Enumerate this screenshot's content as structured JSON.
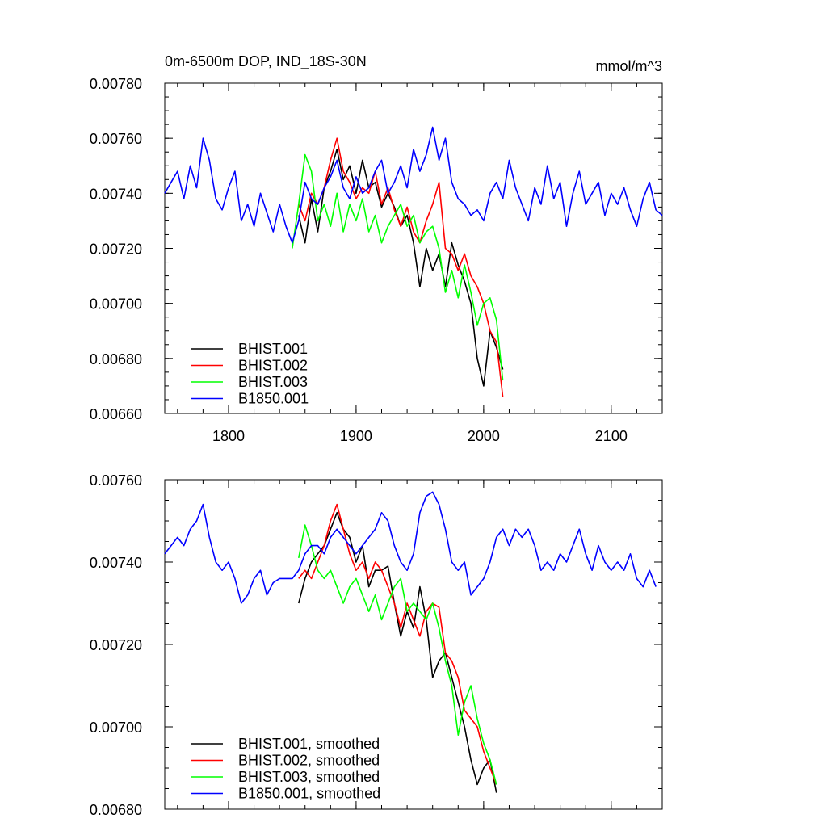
{
  "chart_data": [
    {
      "type": "line",
      "title": "0m-6500m DOP, IND_18S-30N",
      "units": "mmol/m^3",
      "xlim": [
        1750,
        2140
      ],
      "ylim": [
        0.0066,
        0.0078
      ],
      "xticks": [
        "1800",
        "1900",
        "2000",
        "2100"
      ],
      "xtick_values": [
        1800,
        1900,
        2000,
        2100
      ],
      "yticks": [
        "0.00780",
        "0.00760",
        "0.00740",
        "0.00720",
        "0.00700",
        "0.00680",
        "0.00660"
      ],
      "ytick_values": [
        0.0078,
        0.0076,
        0.0074,
        0.0072,
        0.007,
        0.0068,
        0.0066
      ],
      "legend_position": "bottom-left",
      "series": [
        {
          "name": "BHIST.001",
          "color": "#000000",
          "x": [
            1855,
            1860,
            1865,
            1870,
            1875,
            1880,
            1885,
            1890,
            1895,
            1900,
            1905,
            1910,
            1915,
            1920,
            1925,
            1930,
            1935,
            1940,
            1945,
            1950,
            1955,
            1960,
            1965,
            1970,
            1975,
            1980,
            1985,
            1990,
            1995,
            2000,
            2005,
            2010,
            2015
          ],
          "values": [
            0.00732,
            0.00722,
            0.00738,
            0.00726,
            0.00742,
            0.00748,
            0.00756,
            0.00745,
            0.0075,
            0.0074,
            0.00752,
            0.00742,
            0.00744,
            0.00735,
            0.0074,
            0.00735,
            0.00728,
            0.00732,
            0.00722,
            0.00706,
            0.0072,
            0.00712,
            0.00718,
            0.00706,
            0.00722,
            0.00714,
            0.00708,
            0.007,
            0.0068,
            0.0067,
            0.0069,
            0.00684,
            0.00676
          ]
        },
        {
          "name": "BHIST.002",
          "color": "#ff0000",
          "x": [
            1855,
            1860,
            1865,
            1870,
            1875,
            1880,
            1885,
            1890,
            1895,
            1900,
            1905,
            1910,
            1915,
            1920,
            1925,
            1930,
            1935,
            1940,
            1945,
            1950,
            1955,
            1960,
            1965,
            1970,
            1975,
            1980,
            1985,
            1990,
            1995,
            2000,
            2005,
            2010,
            2015
          ],
          "values": [
            0.00736,
            0.0073,
            0.0074,
            0.00736,
            0.00742,
            0.00752,
            0.0076,
            0.00748,
            0.00744,
            0.00738,
            0.00742,
            0.0074,
            0.00748,
            0.00736,
            0.00742,
            0.00734,
            0.00728,
            0.00735,
            0.00726,
            0.00722,
            0.0073,
            0.00736,
            0.00744,
            0.0072,
            0.00718,
            0.00712,
            0.00718,
            0.0071,
            0.00706,
            0.007,
            0.0069,
            0.00686,
            0.00666
          ]
        },
        {
          "name": "BHIST.003",
          "color": "#00ff00",
          "x": [
            1850,
            1855,
            1860,
            1865,
            1870,
            1875,
            1880,
            1885,
            1890,
            1895,
            1900,
            1905,
            1910,
            1915,
            1920,
            1925,
            1930,
            1935,
            1940,
            1945,
            1950,
            1955,
            1960,
            1965,
            1970,
            1975,
            1980,
            1985,
            1990,
            1995,
            2000,
            2005,
            2010,
            2015
          ],
          "values": [
            0.0072,
            0.00736,
            0.00754,
            0.00748,
            0.0073,
            0.00736,
            0.00728,
            0.0074,
            0.00726,
            0.00736,
            0.0073,
            0.00738,
            0.00726,
            0.00732,
            0.00722,
            0.00728,
            0.00732,
            0.00736,
            0.00728,
            0.00732,
            0.00722,
            0.00726,
            0.00728,
            0.0072,
            0.00704,
            0.00712,
            0.00702,
            0.00714,
            0.00704,
            0.00692,
            0.007,
            0.00702,
            0.00694,
            0.00672
          ]
        },
        {
          "name": "B1850.001",
          "color": "#0000ff",
          "x": [
            1750,
            1755,
            1760,
            1765,
            1770,
            1775,
            1780,
            1785,
            1790,
            1795,
            1800,
            1805,
            1810,
            1815,
            1820,
            1825,
            1830,
            1835,
            1840,
            1845,
            1850,
            1855,
            1860,
            1865,
            1870,
            1875,
            1880,
            1885,
            1890,
            1895,
            1900,
            1905,
            1910,
            1915,
            1920,
            1925,
            1930,
            1935,
            1940,
            1945,
            1950,
            1955,
            1960,
            1965,
            1970,
            1975,
            1980,
            1985,
            1990,
            1995,
            2000,
            2005,
            2010,
            2015,
            2020,
            2025,
            2030,
            2035,
            2040,
            2045,
            2050,
            2055,
            2060,
            2065,
            2070,
            2075,
            2080,
            2085,
            2090,
            2095,
            2100,
            2105,
            2110,
            2115,
            2120,
            2125,
            2130,
            2135,
            2140
          ],
          "values": [
            0.0074,
            0.00744,
            0.00748,
            0.00738,
            0.0075,
            0.00742,
            0.0076,
            0.00752,
            0.00738,
            0.00734,
            0.00742,
            0.00748,
            0.0073,
            0.00736,
            0.00728,
            0.0074,
            0.00733,
            0.00726,
            0.00736,
            0.00728,
            0.00722,
            0.0073,
            0.00744,
            0.00738,
            0.00736,
            0.00742,
            0.00746,
            0.00752,
            0.00742,
            0.00738,
            0.00746,
            0.0074,
            0.00742,
            0.00748,
            0.00752,
            0.0074,
            0.00744,
            0.0075,
            0.00742,
            0.00756,
            0.00748,
            0.00754,
            0.00764,
            0.00752,
            0.0076,
            0.00744,
            0.00738,
            0.00736,
            0.00732,
            0.00734,
            0.0073,
            0.0074,
            0.00744,
            0.00738,
            0.00752,
            0.00742,
            0.00736,
            0.0073,
            0.00742,
            0.00736,
            0.0075,
            0.00738,
            0.00744,
            0.00728,
            0.0074,
            0.00748,
            0.00736,
            0.0074,
            0.00744,
            0.00732,
            0.0074,
            0.00736,
            0.00742,
            0.00734,
            0.00728,
            0.00738,
            0.00744,
            0.00734,
            0.00732
          ]
        }
      ]
    },
    {
      "type": "line",
      "title": "",
      "xlim": [
        1750,
        2140
      ],
      "ylim": [
        0.0068,
        0.0076
      ],
      "xticks": [],
      "xtick_values": [
        1800,
        1900,
        2000,
        2100
      ],
      "yticks": [
        "0.00760",
        "0.00740",
        "0.00720",
        "0.00700",
        "0.00680"
      ],
      "ytick_values": [
        0.0076,
        0.0074,
        0.0072,
        0.007,
        0.0068
      ],
      "legend_position": "bottom-left",
      "series": [
        {
          "name": "BHIST.001, smoothed",
          "color": "#000000",
          "x": [
            1855,
            1860,
            1865,
            1870,
            1875,
            1880,
            1885,
            1890,
            1895,
            1900,
            1905,
            1910,
            1915,
            1920,
            1925,
            1930,
            1935,
            1940,
            1945,
            1950,
            1955,
            1960,
            1965,
            1970,
            1975,
            1980,
            1985,
            1990,
            1995,
            2000,
            2005,
            2010
          ],
          "values": [
            0.0073,
            0.00736,
            0.0074,
            0.00742,
            0.00744,
            0.00748,
            0.00752,
            0.00748,
            0.00746,
            0.0074,
            0.00744,
            0.00734,
            0.00738,
            0.00738,
            0.00739,
            0.0073,
            0.00722,
            0.00728,
            0.00724,
            0.00734,
            0.00726,
            0.00712,
            0.00716,
            0.00718,
            0.00712,
            0.00706,
            0.007,
            0.00692,
            0.00686,
            0.0069,
            0.00692,
            0.00684
          ]
        },
        {
          "name": "BHIST.002, smoothed",
          "color": "#ff0000",
          "x": [
            1855,
            1860,
            1865,
            1870,
            1875,
            1880,
            1885,
            1890,
            1895,
            1900,
            1905,
            1910,
            1915,
            1920,
            1925,
            1930,
            1935,
            1940,
            1945,
            1950,
            1955,
            1960,
            1965,
            1970,
            1975,
            1980,
            1985,
            1990,
            1995,
            2000,
            2005,
            2010
          ],
          "values": [
            0.00736,
            0.00738,
            0.00736,
            0.0074,
            0.00744,
            0.0075,
            0.00754,
            0.00748,
            0.00742,
            0.00738,
            0.0074,
            0.00736,
            0.0074,
            0.00738,
            0.00734,
            0.0073,
            0.00724,
            0.0073,
            0.00726,
            0.00722,
            0.00728,
            0.0073,
            0.00729,
            0.00718,
            0.00716,
            0.00712,
            0.00704,
            0.00702,
            0.007,
            0.00694,
            0.0069,
            0.00686
          ]
        },
        {
          "name": "BHIST.003, smoothed",
          "color": "#00ff00",
          "x": [
            1855,
            1860,
            1865,
            1870,
            1875,
            1880,
            1885,
            1890,
            1895,
            1900,
            1905,
            1910,
            1915,
            1920,
            1925,
            1930,
            1935,
            1940,
            1945,
            1950,
            1955,
            1960,
            1965,
            1970,
            1975,
            1980,
            1985,
            1990,
            1995,
            2000,
            2005,
            2010
          ],
          "values": [
            0.00741,
            0.00749,
            0.00744,
            0.00738,
            0.00736,
            0.00738,
            0.00734,
            0.0073,
            0.00734,
            0.00736,
            0.00732,
            0.00728,
            0.00732,
            0.00726,
            0.0073,
            0.00734,
            0.00736,
            0.00728,
            0.0073,
            0.00728,
            0.00726,
            0.0073,
            0.00724,
            0.00716,
            0.0071,
            0.00698,
            0.00706,
            0.0071,
            0.00702,
            0.00696,
            0.00692,
            0.00686
          ]
        },
        {
          "name": "B1850.001, smoothed",
          "color": "#0000ff",
          "x": [
            1750,
            1755,
            1760,
            1765,
            1770,
            1775,
            1780,
            1785,
            1790,
            1795,
            1800,
            1805,
            1810,
            1815,
            1820,
            1825,
            1830,
            1835,
            1840,
            1845,
            1850,
            1855,
            1860,
            1865,
            1870,
            1875,
            1880,
            1885,
            1890,
            1895,
            1900,
            1905,
            1910,
            1915,
            1920,
            1925,
            1930,
            1935,
            1940,
            1945,
            1950,
            1955,
            1960,
            1965,
            1970,
            1975,
            1980,
            1985,
            1990,
            1995,
            2000,
            2005,
            2010,
            2015,
            2020,
            2025,
            2030,
            2035,
            2040,
            2045,
            2050,
            2055,
            2060,
            2065,
            2070,
            2075,
            2080,
            2085,
            2090,
            2095,
            2100,
            2105,
            2110,
            2115,
            2120,
            2125,
            2130,
            2135
          ],
          "values": [
            0.00742,
            0.00744,
            0.00746,
            0.00744,
            0.00748,
            0.0075,
            0.00754,
            0.00746,
            0.0074,
            0.00738,
            0.0074,
            0.00736,
            0.0073,
            0.00732,
            0.00736,
            0.00738,
            0.00732,
            0.00735,
            0.00736,
            0.00736,
            0.00736,
            0.00738,
            0.00742,
            0.00744,
            0.00744,
            0.00742,
            0.00746,
            0.00748,
            0.00746,
            0.00744,
            0.00742,
            0.00744,
            0.00746,
            0.00748,
            0.00752,
            0.0075,
            0.00744,
            0.0074,
            0.00738,
            0.00742,
            0.00752,
            0.00756,
            0.00757,
            0.00754,
            0.00748,
            0.0074,
            0.00738,
            0.0074,
            0.00732,
            0.00734,
            0.00736,
            0.0074,
            0.00746,
            0.00748,
            0.00744,
            0.00748,
            0.00746,
            0.00748,
            0.00744,
            0.00738,
            0.0074,
            0.00738,
            0.00742,
            0.0074,
            0.00744,
            0.00748,
            0.00742,
            0.00738,
            0.00744,
            0.0074,
            0.00738,
            0.0074,
            0.00738,
            0.00742,
            0.00736,
            0.00734,
            0.00738,
            0.00734
          ]
        }
      ]
    }
  ]
}
